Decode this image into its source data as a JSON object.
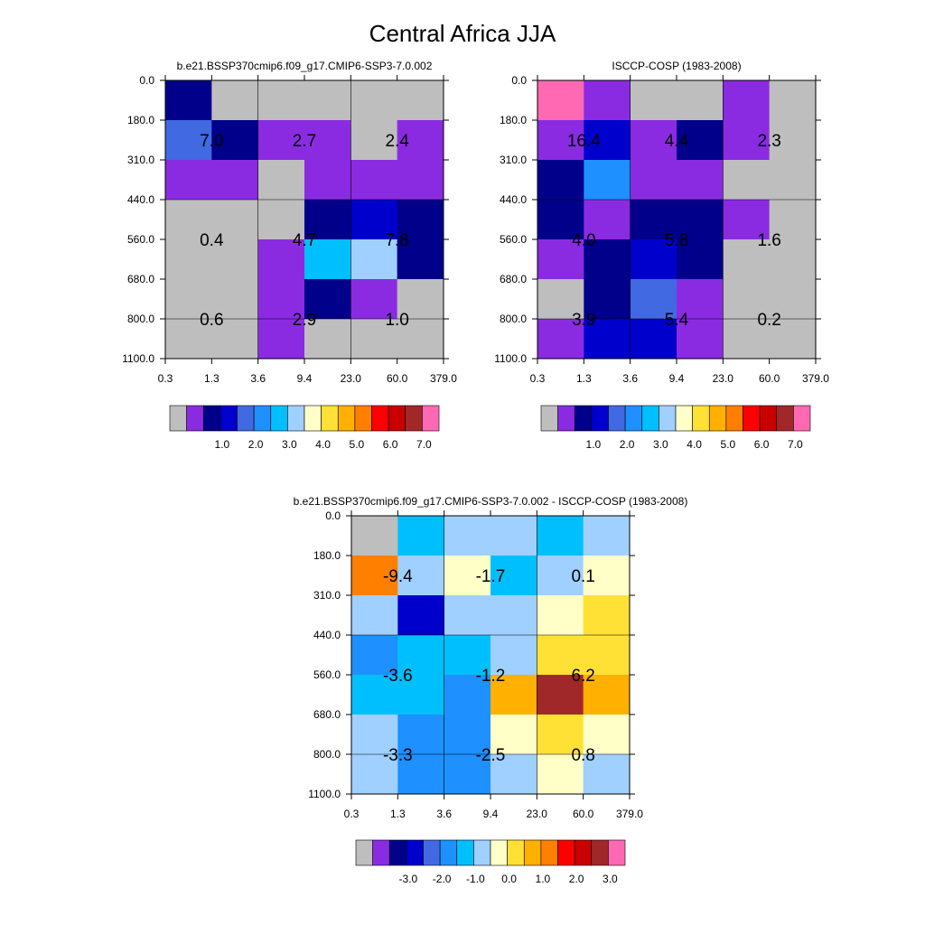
{
  "figure": {
    "title": "Central Africa JJA"
  },
  "palettes": {
    "mean": [
      "#bebebe",
      "#8a2be2",
      "#00008b",
      "#0000cd",
      "#4169e1",
      "#1e90ff",
      "#00bfff",
      "#a0d0ff",
      "#ffffc8",
      "#ffe135",
      "#ffb000",
      "#ff7f00",
      "#ff0000",
      "#c80000",
      "#a02828",
      "#ff69b4"
    ],
    "diff": [
      "#bebebe",
      "#8a2be2",
      "#00008b",
      "#0000cd",
      "#4169e1",
      "#1e90ff",
      "#00bfff",
      "#a0d0ff",
      "#ffffc8",
      "#ffe135",
      "#ffb000",
      "#ff7f00",
      "#ff0000",
      "#c80000",
      "#a02828",
      "#ff69b4"
    ]
  },
  "chart_data": [
    {
      "type": "heatmap",
      "title": "b.e21.BSSP370cmip6.f09_g17.CMIP6-SSP3-7.0.002",
      "xticks": [
        "0.3",
        "1.3",
        "3.6",
        "9.4",
        "23.0",
        "60.0",
        "379.0"
      ],
      "yticks": [
        "0.0",
        "180.0",
        "310.0",
        "440.0",
        "560.0",
        "680.0",
        "800.0",
        "1100.0"
      ],
      "cells": [
        [
          2,
          0,
          0,
          0,
          0,
          0
        ],
        [
          4,
          2,
          1,
          1,
          0,
          1
        ],
        [
          1,
          1,
          0,
          1,
          1,
          1
        ],
        [
          0,
          0,
          0,
          2,
          3,
          2
        ],
        [
          0,
          0,
          1,
          6,
          7,
          2
        ],
        [
          0,
          0,
          1,
          2,
          1,
          0
        ],
        [
          0,
          0,
          1,
          0,
          0,
          0
        ]
      ],
      "labels": [
        [
          "7.0",
          "2.7",
          "2.4"
        ],
        [
          "0.4",
          "4.7",
          "7.8"
        ],
        [
          "0.6",
          "2.9",
          "1.0"
        ]
      ],
      "colorbar_labels": [
        "1.0",
        "2.0",
        "3.0",
        "4.0",
        "5.0",
        "6.0",
        "7.0"
      ]
    },
    {
      "type": "heatmap",
      "title": "ISCCP-COSP (1983-2008)",
      "xticks": [
        "0.3",
        "1.3",
        "3.6",
        "9.4",
        "23.0",
        "60.0",
        "379.0"
      ],
      "yticks": [
        "0.0",
        "180.0",
        "310.0",
        "440.0",
        "560.0",
        "680.0",
        "800.0",
        "1100.0"
      ],
      "cells": [
        [
          15,
          1,
          0,
          0,
          1,
          0
        ],
        [
          1,
          3,
          1,
          2,
          1,
          0
        ],
        [
          2,
          5,
          1,
          1,
          0,
          0
        ],
        [
          2,
          1,
          2,
          2,
          1,
          0
        ],
        [
          1,
          2,
          3,
          2,
          0,
          0
        ],
        [
          0,
          2,
          4,
          1,
          0,
          0
        ],
        [
          1,
          3,
          3,
          1,
          0,
          0
        ]
      ],
      "labels": [
        [
          "16.4",
          "4.4",
          "2.3"
        ],
        [
          "4.0",
          "5.8",
          "1.6"
        ],
        [
          "3.9",
          "5.4",
          "0.2"
        ]
      ],
      "colorbar_labels": [
        "1.0",
        "2.0",
        "3.0",
        "4.0",
        "5.0",
        "6.0",
        "7.0"
      ]
    },
    {
      "type": "heatmap",
      "title": "b.e21.BSSP370cmip6.f09_g17.CMIP6-SSP3-7.0.002 - ISCCP-COSP (1983-2008)",
      "xticks": [
        "0.3",
        "1.3",
        "3.6",
        "9.4",
        "23.0",
        "60.0",
        "379.0"
      ],
      "yticks": [
        "0.0",
        "180.0",
        "310.0",
        "440.0",
        "560.0",
        "680.0",
        "800.0",
        "1100.0"
      ],
      "cells": [
        [
          0,
          6,
          7,
          7,
          6,
          7
        ],
        [
          11,
          7,
          8,
          6,
          7,
          8
        ],
        [
          7,
          3,
          7,
          7,
          8,
          9
        ],
        [
          5,
          6,
          6,
          7,
          9,
          9
        ],
        [
          6,
          6,
          5,
          10,
          14,
          10
        ],
        [
          7,
          5,
          5,
          8,
          9,
          8
        ],
        [
          7,
          5,
          5,
          7,
          8,
          7
        ]
      ],
      "labels": [
        [
          "-9.4",
          "-1.7",
          "0.1"
        ],
        [
          "-3.6",
          "-1.2",
          "6.2"
        ],
        [
          "-3.3",
          "-2.5",
          "0.8"
        ]
      ],
      "colorbar_labels": [
        "-3.0",
        "-2.0",
        "-1.0",
        "0.0",
        "1.0",
        "2.0",
        "3.0"
      ]
    }
  ]
}
